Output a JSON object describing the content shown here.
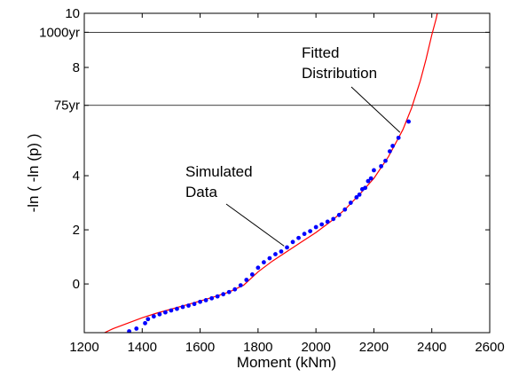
{
  "chart_data": {
    "type": "scatter",
    "xlabel": "Moment (kNm)",
    "ylabel": "-ln ( -ln (p) )",
    "xlim": [
      1200,
      2600
    ],
    "ylim": [
      -1.8,
      10
    ],
    "x_ticks": [
      "1200",
      "1400",
      "1600",
      "1800",
      "2000",
      "2200",
      "2400",
      "2600"
    ],
    "y_ticks": [
      {
        "value": 0,
        "label": "0"
      },
      {
        "value": 2,
        "label": "2"
      },
      {
        "value": 4,
        "label": "4"
      },
      {
        "value": 6.6,
        "label": "75yr"
      },
      {
        "value": 8,
        "label": "8"
      },
      {
        "value": 9.3,
        "label": "1000yr"
      },
      {
        "value": 10,
        "label": "10"
      }
    ],
    "reference_lines": [
      {
        "y": 6.6,
        "label": "75yr"
      },
      {
        "y": 9.3,
        "label": "1000yr"
      }
    ],
    "series": [
      {
        "name": "Simulated Data",
        "kind": "points",
        "color": "#0000ff",
        "x": [
          1355,
          1380,
          1410,
          1420,
          1440,
          1460,
          1480,
          1500,
          1520,
          1540,
          1560,
          1580,
          1600,
          1620,
          1640,
          1660,
          1680,
          1700,
          1720,
          1740,
          1760,
          1780,
          1800,
          1820,
          1840,
          1860,
          1880,
          1900,
          1920,
          1940,
          1960,
          1980,
          2000,
          2020,
          2040,
          2060,
          2080,
          2100,
          2120,
          2140,
          2150,
          2160,
          2170,
          2180,
          2190,
          2200,
          2225,
          2240,
          2255,
          2265,
          2285,
          2320
        ],
        "y": [
          -1.75,
          -1.65,
          -1.45,
          -1.3,
          -1.2,
          -1.12,
          -1.05,
          -0.98,
          -0.92,
          -0.85,
          -0.8,
          -0.74,
          -0.66,
          -0.6,
          -0.53,
          -0.46,
          -0.38,
          -0.3,
          -0.2,
          -0.05,
          0.15,
          0.35,
          0.6,
          0.8,
          0.95,
          1.1,
          1.2,
          1.35,
          1.55,
          1.7,
          1.85,
          1.95,
          2.1,
          2.2,
          2.3,
          2.4,
          2.55,
          2.75,
          3.0,
          3.2,
          3.3,
          3.5,
          3.55,
          3.8,
          3.9,
          4.2,
          4.35,
          4.55,
          4.9,
          5.1,
          5.4,
          6.0
        ]
      },
      {
        "name": "Fitted Distribution",
        "kind": "line",
        "color": "#ff0000",
        "x": [
          1270,
          1300,
          1350,
          1400,
          1450,
          1500,
          1550,
          1600,
          1650,
          1700,
          1750,
          1800,
          1850,
          1900,
          1950,
          2000,
          2050,
          2100,
          2150,
          2200,
          2250,
          2300,
          2330,
          2360,
          2380,
          2400,
          2415,
          2425
        ],
        "y": [
          -1.8,
          -1.65,
          -1.45,
          -1.25,
          -1.08,
          -0.93,
          -0.78,
          -0.63,
          -0.47,
          -0.3,
          -0.05,
          0.45,
          0.85,
          1.2,
          1.55,
          1.9,
          2.3,
          2.75,
          3.3,
          3.9,
          4.7,
          5.7,
          6.5,
          7.5,
          8.3,
          9.2,
          9.8,
          10.3
        ]
      }
    ],
    "annotations": [
      {
        "lines": [
          "Fitted",
          "Distribution"
        ],
        "arrow_to": [
          2290,
          5.6
        ]
      },
      {
        "lines": [
          "Simulated",
          "Data"
        ],
        "arrow_to": [
          1890,
          1.4
        ]
      }
    ]
  }
}
